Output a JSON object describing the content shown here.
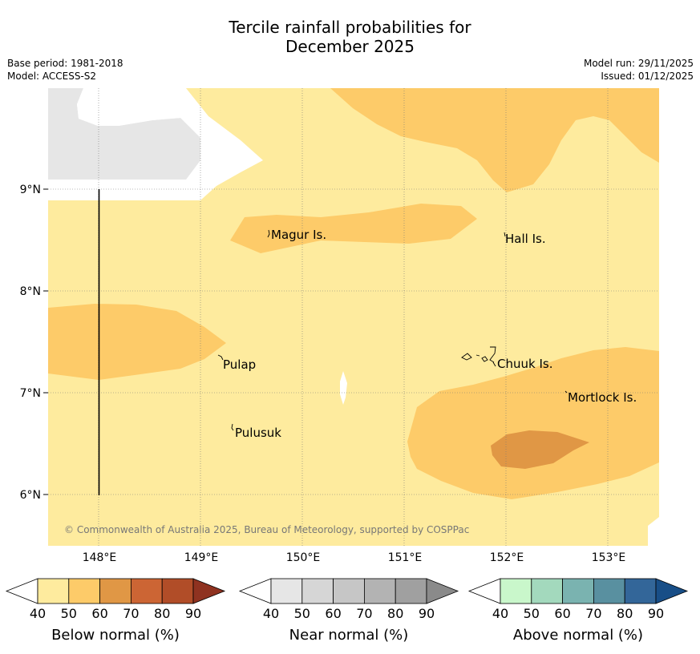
{
  "title": {
    "line1": "Tercile rainfall probabilities for",
    "line2": "December 2025"
  },
  "meta": {
    "base_period": "Base period: 1981-2018",
    "model": "Model: ACCESS-S2",
    "model_run": "Model run: 29/11/2025",
    "issued": "Issued: 01/12/2025"
  },
  "map": {
    "lat_ticks": [
      "9°N",
      "8°N",
      "7°N",
      "6°N"
    ],
    "lon_ticks": [
      "148°E",
      "149°E",
      "150°E",
      "151°E",
      "152°E",
      "153°E"
    ],
    "places": [
      "Magur Is.",
      "Hall Is.",
      "Pulap",
      "Chuuk Is.",
      "Mortlock Is.",
      "Pulusuk"
    ],
    "copyright": "© Commonwealth of Australia 2025, Bureau of Meteorology, supported by COSPPac",
    "colors": {
      "nodata": "#ffffff",
      "near_40": "#e6e6e6",
      "below_40": "#feeb9e",
      "below_50": "#fdcb69",
      "below_60": "#e09745"
    }
  },
  "colorbars": [
    {
      "title": "Below normal (%)",
      "ticks": [
        "40",
        "50",
        "60",
        "70",
        "80",
        "90"
      ],
      "colors": [
        "#ffffff",
        "#feeb9e",
        "#fdcb69",
        "#e09745",
        "#cc6534",
        "#b14d28",
        "#8f3220"
      ]
    },
    {
      "title": "Near normal (%)",
      "ticks": [
        "40",
        "50",
        "60",
        "70",
        "80",
        "90"
      ],
      "colors": [
        "#ffffff",
        "#e6e6e6",
        "#d6d6d6",
        "#c6c6c6",
        "#b3b3b3",
        "#a0a0a0",
        "#8a8a8a"
      ]
    },
    {
      "title": "Above normal (%)",
      "ticks": [
        "40",
        "50",
        "60",
        "70",
        "80",
        "90"
      ],
      "colors": [
        "#ffffff",
        "#c9f7cb",
        "#a3d9bd",
        "#7ab3b0",
        "#5990a0",
        "#336699",
        "#184e87"
      ]
    }
  ]
}
